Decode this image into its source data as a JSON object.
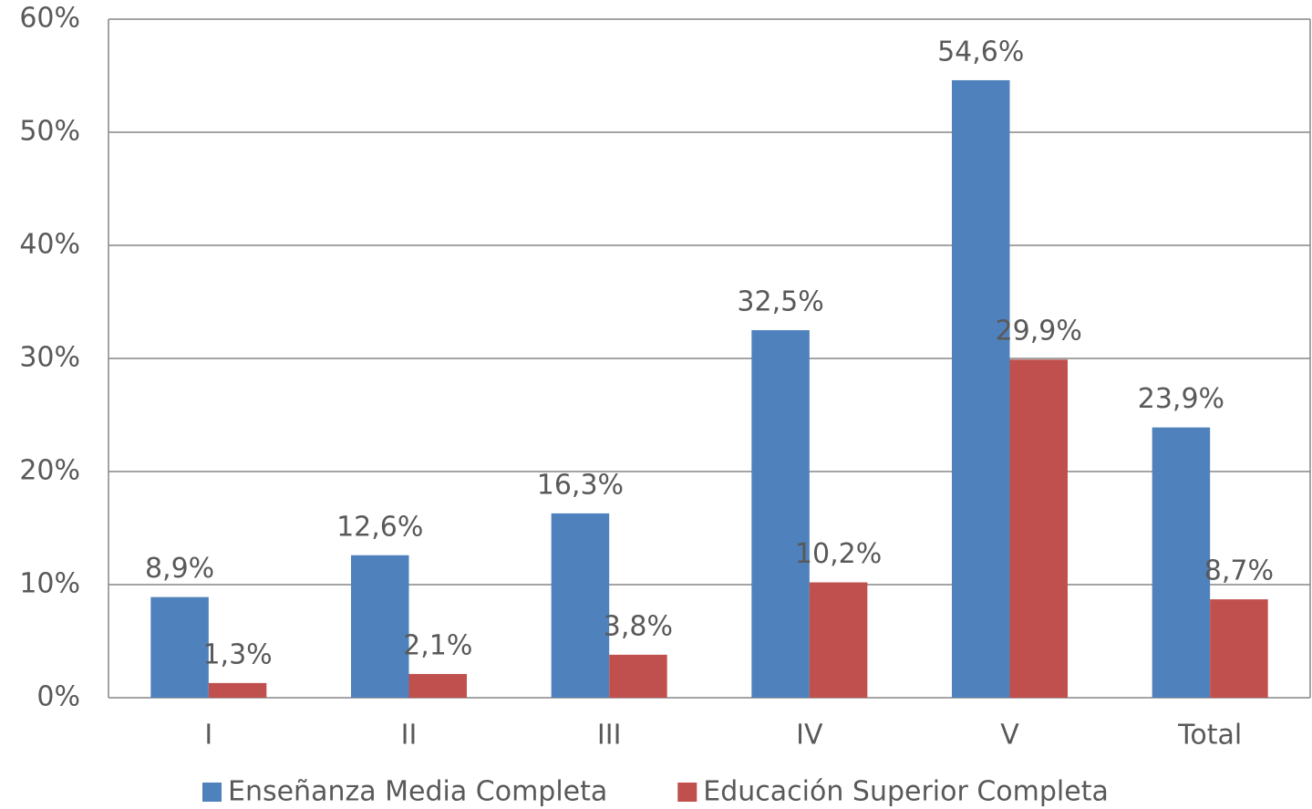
{
  "chart_data": {
    "type": "bar",
    "categories": [
      "I",
      "II",
      "III",
      "IV",
      "V",
      "Total"
    ],
    "series": [
      {
        "name": "Enseñanza Media Completa",
        "color": "#4f81bd",
        "values": [
          8.9,
          12.6,
          16.3,
          32.5,
          54.6,
          23.9
        ],
        "value_labels": [
          "8,9%",
          "12,6%",
          "16,3%",
          "32,5%",
          "54,6%",
          "23,9%"
        ]
      },
      {
        "name": "Educación Superior Completa",
        "color": "#c0504d",
        "values": [
          1.3,
          2.1,
          3.8,
          10.2,
          29.9,
          8.7
        ],
        "value_labels": [
          "1,3%",
          "2,1%",
          "3,8%",
          "10,2%",
          "29,9%",
          "8,7%"
        ]
      }
    ],
    "ylim": [
      0,
      60
    ],
    "yticks": [
      {
        "value": 0,
        "label": "0%"
      },
      {
        "value": 10,
        "label": "10%"
      },
      {
        "value": 20,
        "label": "20%"
      },
      {
        "value": 30,
        "label": "30%"
      },
      {
        "value": 40,
        "label": "40%"
      },
      {
        "value": 50,
        "label": "50%"
      },
      {
        "value": 60,
        "label": "60%"
      }
    ],
    "grid": true,
    "legend": "bottom"
  }
}
